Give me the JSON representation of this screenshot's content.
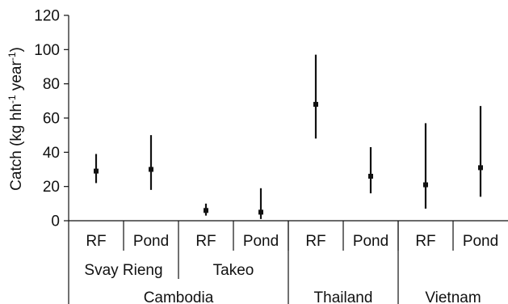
{
  "chart_data": {
    "type": "scatter",
    "ylabel_main": "Catch (kg hh",
    "ylabel_sup1": "-1",
    "ylabel_mid": " year",
    "ylabel_sup2": "-1",
    "ylabel_close": ")",
    "ylim": [
      0,
      120
    ],
    "yticks": [
      "0",
      "20",
      "40",
      "60",
      "80",
      "100",
      "120"
    ],
    "grid": false,
    "categories": [
      "RF",
      "Pond",
      "RF",
      "Pond",
      "RF",
      "Pond",
      "RF",
      "Pond"
    ],
    "means": [
      29,
      30,
      6,
      5,
      68,
      26,
      21,
      31
    ],
    "lows": [
      22,
      18,
      3,
      1,
      48,
      16,
      7,
      14
    ],
    "highs": [
      39,
      50,
      10,
      19,
      97,
      43,
      57,
      67
    ],
    "subgroups": [
      {
        "label": "Svay Rieng",
        "start": 0,
        "end": 2
      },
      {
        "label": "Takeo",
        "start": 2,
        "end": 4
      }
    ],
    "groups": [
      {
        "label": "Cambodia",
        "start": 0,
        "end": 4
      },
      {
        "label": "Thailand",
        "start": 4,
        "end": 6
      },
      {
        "label": "Vietnam",
        "start": 6,
        "end": 8
      }
    ]
  }
}
